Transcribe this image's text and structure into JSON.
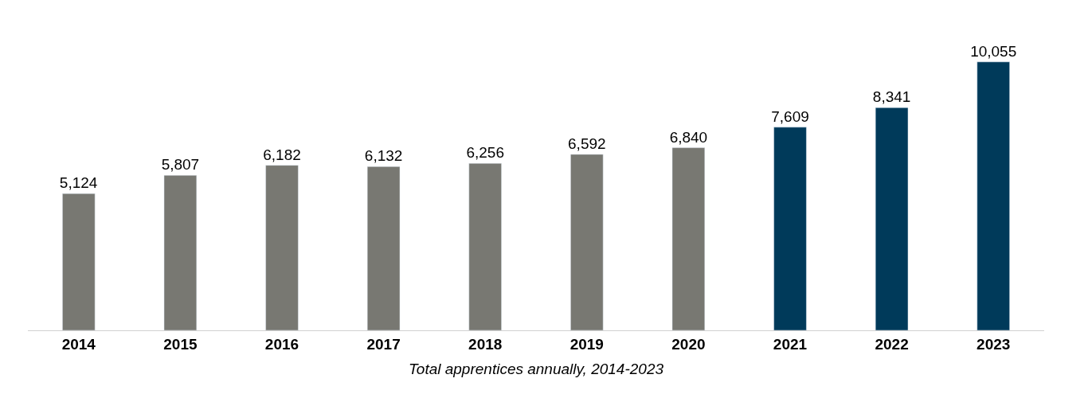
{
  "chart_data": {
    "type": "bar",
    "xlabel": "Total apprentices annually, 2014-2023",
    "categories": [
      "2014",
      "2015",
      "2016",
      "2017",
      "2018",
      "2019",
      "2020",
      "2021",
      "2022",
      "2023"
    ],
    "values": [
      5124,
      5807,
      6182,
      6132,
      6256,
      6592,
      6840,
      7609,
      8341,
      10055
    ],
    "value_labels": [
      "5,124",
      "5,807",
      "6,182",
      "6,132",
      "6,256",
      "6,592",
      "6,840",
      "7,609",
      "8,341",
      "10,055"
    ],
    "colors": [
      "#787872",
      "#787872",
      "#787872",
      "#787872",
      "#787872",
      "#787872",
      "#787872",
      "#003a5a",
      "#003a5a",
      "#003a5a"
    ]
  }
}
